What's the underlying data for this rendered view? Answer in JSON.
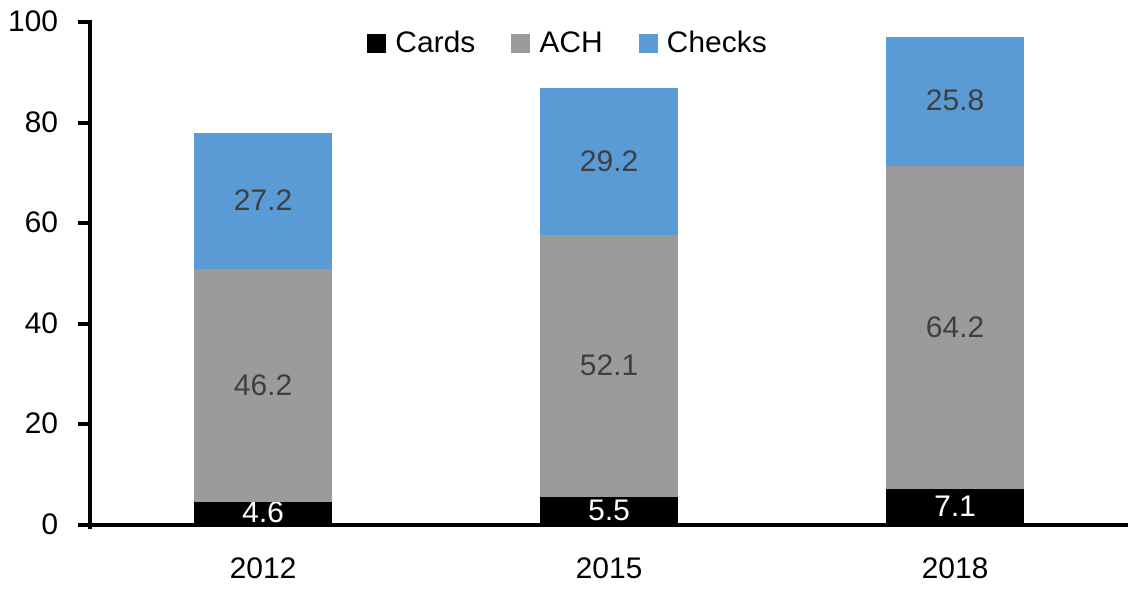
{
  "chart_data": {
    "type": "bar",
    "stacked": true,
    "title": "",
    "xlabel": "",
    "ylabel": "",
    "categories": [
      "2012",
      "2015",
      "2018"
    ],
    "series": [
      {
        "name": "Cards",
        "color": "#000000",
        "label_color": "#ffffff",
        "values": [
          4.6,
          5.5,
          7.1
        ]
      },
      {
        "name": "ACH",
        "color": "#9b9b9b",
        "label_color": "#3f3f3f",
        "values": [
          46.2,
          52.1,
          64.2
        ]
      },
      {
        "name": "Checks",
        "color": "#5b9bd5",
        "label_color": "#3f3f3f",
        "values": [
          27.2,
          29.2,
          25.8
        ]
      }
    ],
    "totals": [
      78.0,
      86.8,
      97.1
    ],
    "ylim": [
      0,
      100
    ],
    "yticks": [
      0,
      20,
      40,
      60,
      80,
      100
    ],
    "grid": false,
    "legend_position": "top-center",
    "legend_entries": [
      "Cards",
      "ACH",
      "Checks"
    ],
    "axis_color": "#000000",
    "data_labels_shown": true
  }
}
